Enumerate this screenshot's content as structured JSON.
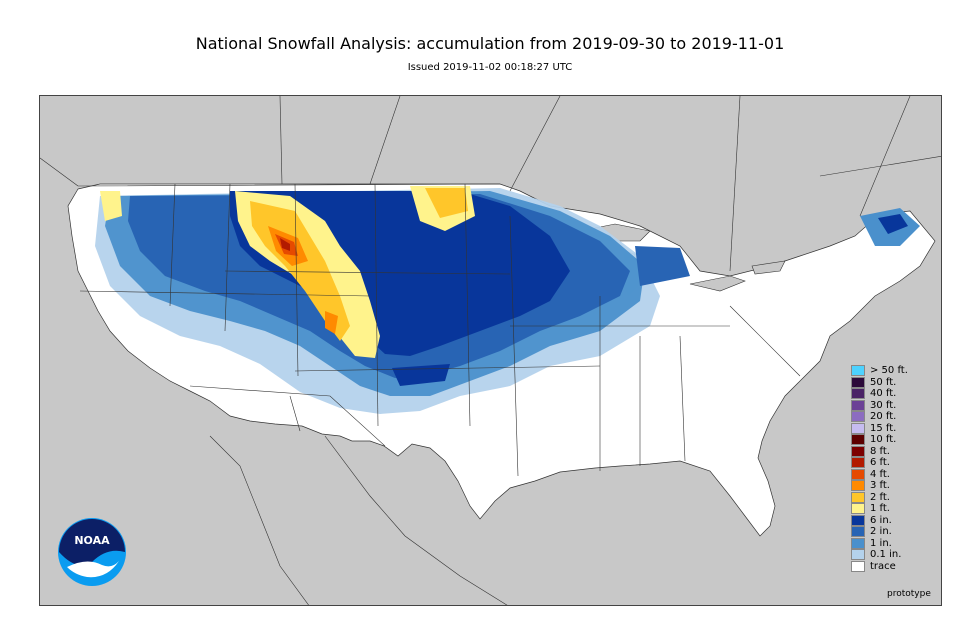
{
  "header": {
    "title": "National Snowfall Analysis: accumulation from 2019-09-30 to 2019-11-01",
    "subtitle": "Issued 2019-11-02 00:18:27 UTC"
  },
  "logo": {
    "text": "NOAA",
    "icon": "noaa-logo"
  },
  "legend": {
    "items": [
      {
        "label": "> 50 ft.",
        "color": "#4dd2ff"
      },
      {
        "label": "50 ft.",
        "color": "#2c0a3a"
      },
      {
        "label": "40 ft.",
        "color": "#4a2266"
      },
      {
        "label": "30 ft.",
        "color": "#6b4196"
      },
      {
        "label": "20 ft.",
        "color": "#8c6cc0"
      },
      {
        "label": "15 ft.",
        "color": "#c6bcf0"
      },
      {
        "label": "10 ft.",
        "color": "#5c0000"
      },
      {
        "label": "8 ft.",
        "color": "#7c0000"
      },
      {
        "label": "6 ft.",
        "color": "#b21a00"
      },
      {
        "label": "4 ft.",
        "color": "#e64a00"
      },
      {
        "label": "3 ft.",
        "color": "#ff8a00"
      },
      {
        "label": "2 ft.",
        "color": "#ffc62a"
      },
      {
        "label": "1 ft.",
        "color": "#fff38c"
      },
      {
        "label": "6 in.",
        "color": "#08369b"
      },
      {
        "label": "2 in.",
        "color": "#2864b4"
      },
      {
        "label": "1 in.",
        "color": "#4a90cc"
      },
      {
        "label": "0.1 in.",
        "color": "#b4d2ec"
      },
      {
        "label": "trace",
        "color": "#ffffff"
      }
    ]
  },
  "footer": {
    "prototype": "prototype"
  },
  "colors": {
    "background": "#c8c8c8",
    "land": "#ffffff"
  }
}
